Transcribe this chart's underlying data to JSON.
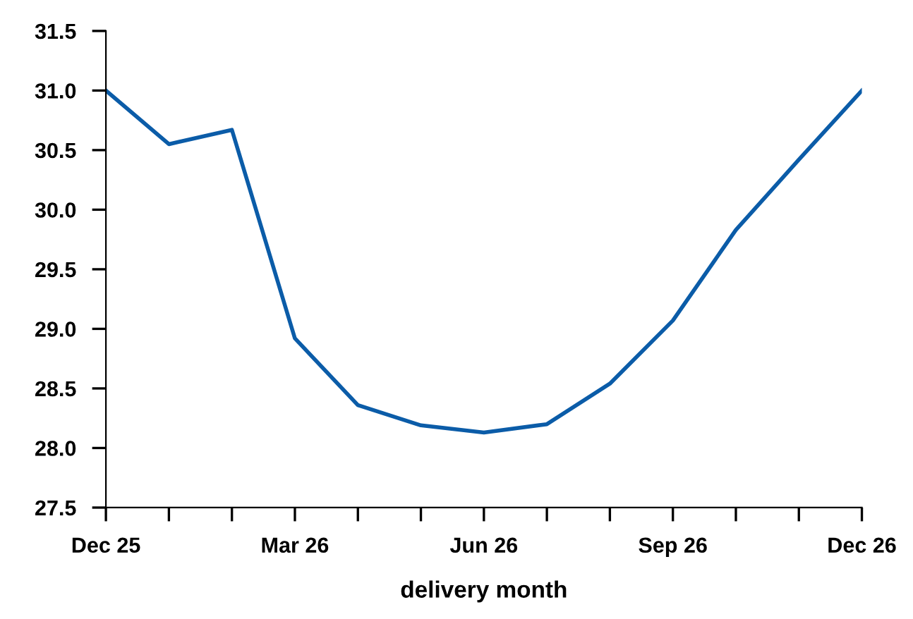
{
  "chart_data": {
    "type": "line",
    "xlabel": "delivery month",
    "categories": [
      "Dec 25",
      null,
      null,
      "Mar 26",
      null,
      null,
      "Jun 26",
      null,
      null,
      "Sep 26",
      null,
      null,
      "Dec 26"
    ],
    "series": [
      {
        "color": "#0b5ca8",
        "values": [
          31.0,
          30.55,
          30.67,
          28.92,
          28.36,
          28.19,
          28.13,
          28.2,
          28.54,
          29.07,
          29.83,
          30.42,
          31.0
        ]
      }
    ],
    "ylim": [
      27.5,
      31.5
    ],
    "yticks": [
      {
        "value": 27.5,
        "label": "27.5"
      },
      {
        "value": 28,
        "label": "28.0"
      },
      {
        "value": 28.5,
        "label": "28.5"
      },
      {
        "value": 29,
        "label": "29.0"
      },
      {
        "value": 29.5,
        "label": "29.5"
      },
      {
        "value": 30,
        "label": "30.0"
      },
      {
        "value": 30.5,
        "label": "30.5"
      },
      {
        "value": 31,
        "label": "31.0"
      },
      {
        "value": 31.5,
        "label": "31.5"
      }
    ],
    "grid": false,
    "legend": false,
    "marker": "none",
    "line_style": "solid"
  }
}
